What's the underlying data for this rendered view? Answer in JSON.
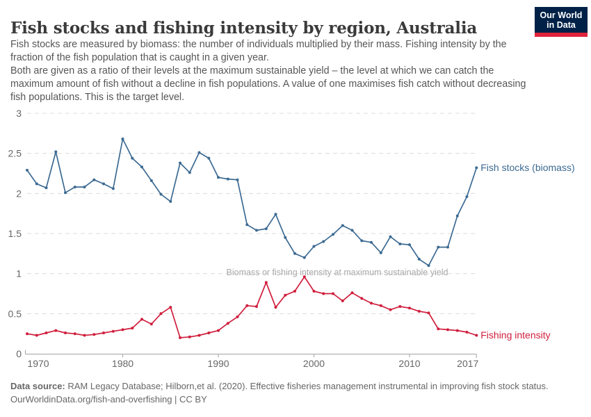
{
  "header": {
    "title": "Fish stocks and fishing intensity by region, Australia",
    "subtitle_p1": "Fish stocks are measured by biomass: the number of individuals multiplied by their mass. Fishing intensity by the fraction of the fish population that is caught in a given year.",
    "subtitle_p2": "Both are given as a ratio of their levels at the maximum sustainable yield – the level at which we can catch the maximum amount of fish without a decline in fish populations. A value of one maximises fish catch without decreasing fish populations. This is the target level.",
    "logo_line1": "Our World",
    "logo_line2": "in Data",
    "logo_colors": {
      "background": "#002147",
      "bar": "#e0243c"
    }
  },
  "chart_data": {
    "type": "line",
    "title": "Fish stocks and fishing intensity by region, Australia",
    "x": [
      1970,
      1971,
      1972,
      1973,
      1974,
      1975,
      1976,
      1977,
      1978,
      1979,
      1980,
      1981,
      1982,
      1983,
      1984,
      1985,
      1986,
      1987,
      1988,
      1989,
      1990,
      1991,
      1992,
      1993,
      1994,
      1995,
      1996,
      1997,
      1998,
      1999,
      2000,
      2001,
      2002,
      2003,
      2004,
      2005,
      2006,
      2007,
      2008,
      2009,
      2010,
      2011,
      2012,
      2013,
      2014,
      2015,
      2016,
      2017
    ],
    "series": [
      {
        "name": "Fish stocks (biomass)",
        "color": "#3c6a92",
        "values": [
          2.29,
          2.12,
          2.07,
          2.52,
          2.01,
          2.08,
          2.08,
          2.17,
          2.12,
          2.06,
          2.68,
          2.44,
          2.33,
          2.16,
          1.99,
          1.9,
          2.38,
          2.26,
          2.51,
          2.44,
          2.2,
          2.18,
          2.17,
          1.61,
          1.54,
          1.56,
          1.74,
          1.45,
          1.25,
          1.2,
          1.34,
          1.4,
          1.49,
          1.6,
          1.54,
          1.41,
          1.39,
          1.26,
          1.46,
          1.37,
          1.36,
          1.18,
          1.1,
          1.33,
          1.33,
          1.72,
          1.96,
          2.32
        ]
      },
      {
        "name": "Fishing intensity",
        "color": "#d01e3c",
        "values": [
          0.25,
          0.23,
          0.26,
          0.29,
          0.26,
          0.25,
          0.23,
          0.24,
          0.26,
          0.28,
          0.3,
          0.32,
          0.43,
          0.37,
          0.5,
          0.58,
          0.2,
          0.21,
          0.23,
          0.26,
          0.29,
          0.38,
          0.46,
          0.6,
          0.59,
          0.89,
          0.58,
          0.73,
          0.78,
          0.96,
          0.78,
          0.75,
          0.75,
          0.66,
          0.76,
          0.69,
          0.63,
          0.6,
          0.55,
          0.59,
          0.57,
          0.53,
          0.51,
          0.31,
          0.3,
          0.29,
          0.27,
          0.23
        ]
      }
    ],
    "annotation": "Biomass or fishing intensity at maximum sustainable yield",
    "annotation_value": 1,
    "xlabel": "",
    "ylabel": "",
    "ylim": [
      0,
      3
    ],
    "yticks": [
      0,
      0.5,
      1,
      1.5,
      2,
      2.5,
      3
    ],
    "xticks": [
      1970,
      1980,
      1990,
      2000,
      2010,
      2017
    ],
    "grid": "horizontal-dashed",
    "grid_color": "#dcdcdc",
    "axis_color": "#a3a3a3",
    "tick_label_color": "#666666",
    "legend_position": "end-of-line-labels"
  },
  "footer": {
    "source_label": "Data source:",
    "source_text": "RAM Legacy Database; Hilborn,et al. (2020). Effective fisheries management instrumental in improving fish stock status.",
    "license": "OurWorldinData.org/fish-and-overfishing | CC BY"
  }
}
